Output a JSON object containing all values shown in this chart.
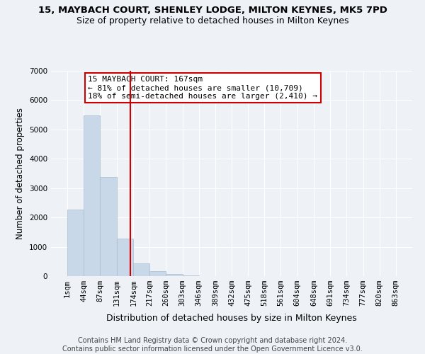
{
  "title": "15, MAYBACH COURT, SHENLEY LODGE, MILTON KEYNES, MK5 7PD",
  "subtitle": "Size of property relative to detached houses in Milton Keynes",
  "xlabel": "Distribution of detached houses by size in Milton Keynes",
  "ylabel": "Number of detached properties",
  "bar_color": "#c8d8e8",
  "bar_edge_color": "#a8bece",
  "background_color": "#eef2f7",
  "grid_color": "#ffffff",
  "vline_x": 167,
  "vline_color": "#cc0000",
  "annotation_text": "15 MAYBACH COURT: 167sqm\n← 81% of detached houses are smaller (10,709)\n18% of semi-detached houses are larger (2,410) →",
  "annotation_box_color": "#ffffff",
  "annotation_box_edge": "#cc0000",
  "bin_edges": [
    1,
    44,
    87,
    131,
    174,
    217,
    260,
    303,
    346,
    389,
    432,
    475,
    518,
    561,
    604,
    648,
    691,
    734,
    777,
    820,
    863
  ],
  "bin_counts": [
    2270,
    5480,
    3390,
    1290,
    430,
    170,
    70,
    30,
    10,
    5,
    0,
    0,
    0,
    0,
    0,
    0,
    0,
    0,
    0,
    0
  ],
  "ylim": [
    0,
    7000
  ],
  "yticks": [
    0,
    1000,
    2000,
    3000,
    4000,
    5000,
    6000,
    7000
  ],
  "footer_text": "Contains HM Land Registry data © Crown copyright and database right 2024.\nContains public sector information licensed under the Open Government Licence v3.0.",
  "title_fontsize": 9.5,
  "subtitle_fontsize": 9,
  "xlabel_fontsize": 9,
  "ylabel_fontsize": 8.5,
  "tick_fontsize": 7.5,
  "annotation_fontsize": 8,
  "footer_fontsize": 7
}
